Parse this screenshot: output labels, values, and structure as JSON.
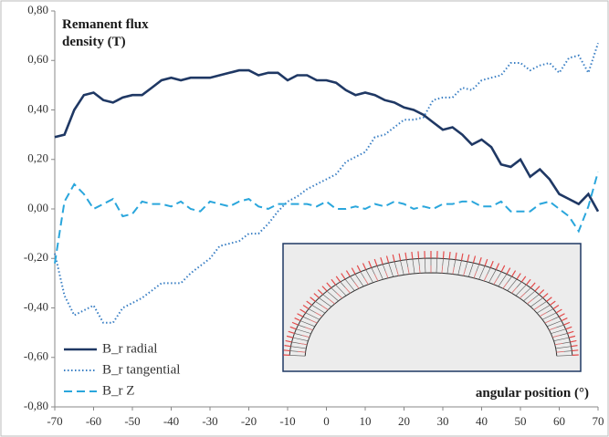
{
  "chart_data": {
    "type": "line",
    "y_label": "Remanent flux density  (T)",
    "x_label": "angular position (°)",
    "x": [
      -70,
      -67.5,
      -65,
      -62.5,
      -60,
      -57.5,
      -55,
      -52.5,
      -50,
      -47.5,
      -45,
      -42.5,
      -40,
      -37.5,
      -35,
      -32.5,
      -30,
      -27.5,
      -25,
      -22.5,
      -20,
      -17.5,
      -15,
      -12.5,
      -10,
      -7.5,
      -5,
      -2.5,
      0,
      2.5,
      5,
      7.5,
      10,
      12.5,
      15,
      17.5,
      20,
      22.5,
      25,
      27.5,
      30,
      32.5,
      35,
      37.5,
      40,
      42.5,
      45,
      47.5,
      50,
      52.5,
      55,
      57.5,
      60,
      62.5,
      65,
      67.5,
      70
    ],
    "series": [
      {
        "name": "B_r radial",
        "color": "#1f3864",
        "dash": "solid",
        "values": [
          0.29,
          0.3,
          0.4,
          0.46,
          0.47,
          0.44,
          0.43,
          0.45,
          0.46,
          0.46,
          0.49,
          0.52,
          0.53,
          0.52,
          0.53,
          0.53,
          0.53,
          0.54,
          0.55,
          0.56,
          0.56,
          0.54,
          0.55,
          0.55,
          0.52,
          0.54,
          0.54,
          0.52,
          0.52,
          0.51,
          0.48,
          0.46,
          0.47,
          0.46,
          0.44,
          0.43,
          0.41,
          0.4,
          0.38,
          0.35,
          0.32,
          0.33,
          0.3,
          0.26,
          0.28,
          0.25,
          0.18,
          0.17,
          0.2,
          0.13,
          0.16,
          0.12,
          0.06,
          0.04,
          0.02,
          0.06,
          -0.01
        ]
      },
      {
        "name": "B_r tangential",
        "color": "#3a7fc4",
        "dash": "dotted",
        "values": [
          -0.18,
          -0.35,
          -0.43,
          -0.41,
          -0.39,
          -0.46,
          -0.46,
          -0.4,
          -0.38,
          -0.36,
          -0.33,
          -0.3,
          -0.3,
          -0.3,
          -0.26,
          -0.23,
          -0.2,
          -0.15,
          -0.14,
          -0.13,
          -0.1,
          -0.1,
          -0.06,
          -0.01,
          0.03,
          0.05,
          0.08,
          0.1,
          0.12,
          0.14,
          0.19,
          0.21,
          0.23,
          0.29,
          0.3,
          0.33,
          0.36,
          0.36,
          0.37,
          0.44,
          0.45,
          0.45,
          0.49,
          0.48,
          0.52,
          0.53,
          0.54,
          0.59,
          0.59,
          0.56,
          0.58,
          0.59,
          0.55,
          0.61,
          0.62,
          0.55,
          0.67
        ]
      },
      {
        "name": "B_r Z",
        "color": "#2aa6dc",
        "dash": "dashed",
        "values": [
          -0.22,
          0.03,
          0.1,
          0.06,
          0.0,
          0.02,
          0.04,
          -0.03,
          -0.02,
          0.03,
          0.02,
          0.02,
          0.01,
          0.03,
          0.0,
          -0.01,
          0.03,
          0.02,
          0.01,
          0.03,
          0.04,
          0.01,
          0.0,
          0.02,
          0.02,
          0.02,
          0.02,
          0.01,
          0.03,
          0.0,
          0.0,
          0.01,
          0.0,
          0.02,
          0.01,
          0.03,
          0.02,
          0.0,
          0.01,
          0.0,
          0.02,
          0.02,
          0.03,
          0.03,
          0.01,
          0.01,
          0.03,
          -0.01,
          -0.01,
          -0.01,
          0.02,
          0.03,
          0.0,
          -0.03,
          -0.09,
          0.01,
          0.15
        ]
      }
    ],
    "xlim": [
      -70,
      70
    ],
    "xticks": [
      -70,
      -60,
      -50,
      -40,
      -30,
      -20,
      -10,
      0,
      10,
      20,
      30,
      40,
      50,
      60,
      70
    ],
    "ylim": [
      -0.8,
      0.8
    ],
    "yticks": [
      {
        "value": -0.8,
        "label": "-0,80"
      },
      {
        "value": -0.6,
        "label": "-0,60"
      },
      {
        "value": -0.4,
        "label": "-0,40"
      },
      {
        "value": -0.2,
        "label": "-0,20"
      },
      {
        "value": 0,
        "label": "0,00"
      },
      {
        "value": 0.2,
        "label": "0,20"
      },
      {
        "value": 0.4,
        "label": "0,40"
      },
      {
        "value": 0.6,
        "label": "0,60"
      },
      {
        "value": 0.8,
        "label": "0,80"
      }
    ],
    "grid": false,
    "legend": "lower left"
  }
}
